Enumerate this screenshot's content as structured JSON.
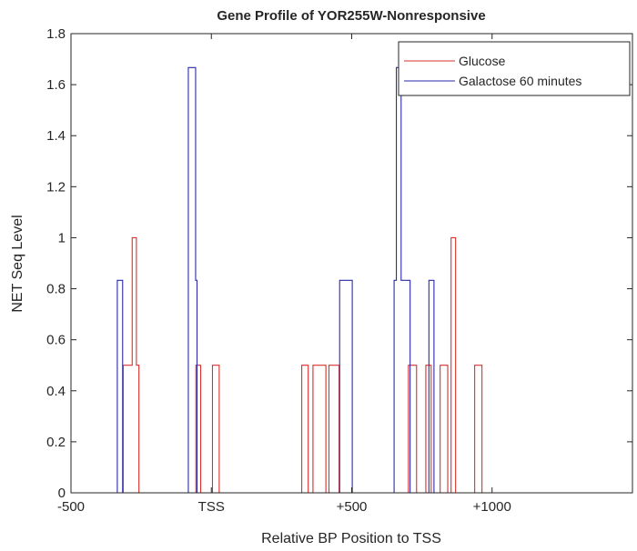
{
  "chart_data": {
    "type": "line",
    "title": "Gene Profile of YOR255W-Nonresponsive",
    "xlabel": "Relative BP Position to TSS",
    "ylabel": "NET Seq Level",
    "xlim": [
      -500,
      1500
    ],
    "ylim": [
      0,
      1.8
    ],
    "x_range_of_data": [
      -500,
      1000
    ],
    "xticks": [
      {
        "value": -500,
        "label": "-500"
      },
      {
        "value": 0,
        "label": "TSS"
      },
      {
        "value": 500,
        "label": "+500"
      },
      {
        "value": 1000,
        "label": "+1000"
      },
      {
        "value": 1500,
        "label": ""
      }
    ],
    "yticks": [
      {
        "value": 0,
        "label": "0"
      },
      {
        "value": 0.2,
        "label": "0.2"
      },
      {
        "value": 0.4,
        "label": "0.4"
      },
      {
        "value": 0.6,
        "label": "0.6"
      },
      {
        "value": 0.8,
        "label": "0.8"
      },
      {
        "value": 1,
        "label": "1"
      },
      {
        "value": 1.2,
        "label": "1.2"
      },
      {
        "value": 1.4,
        "label": "1.4"
      },
      {
        "value": 1.6,
        "label": "1.6"
      },
      {
        "value": 1.8,
        "label": "1.8"
      }
    ],
    "grid": false,
    "legend_position": "top-right",
    "series": [
      {
        "name": "Glucose",
        "color": "#d9312b",
        "step_segments": [
          [
            -314,
            -282,
            0.5
          ],
          [
            -282,
            -267,
            1
          ],
          [
            -267,
            -258,
            0.5
          ],
          [
            -55,
            -38,
            0.5
          ],
          [
            4,
            28,
            0.5
          ],
          [
            322,
            345,
            0.5
          ],
          [
            362,
            383,
            0.5
          ],
          [
            383,
            408,
            0.5
          ],
          [
            419,
            437,
            0.5
          ],
          [
            437,
            455,
            0.5
          ],
          [
            702,
            731,
            0.5
          ],
          [
            764,
            783,
            0.5
          ],
          [
            815,
            842,
            0.5
          ],
          [
            854,
            870,
            1
          ],
          [
            938,
            964,
            0.5
          ]
        ]
      },
      {
        "name": "Galactose 60 minutes",
        "color": "#2a2aa8",
        "step_segments": [
          [
            -335,
            -316,
            0.833
          ],
          [
            -82,
            -56,
            1.667
          ],
          [
            -56,
            -51,
            0.833
          ],
          [
            457,
            502,
            0.833
          ],
          [
            651,
            659,
            0.833
          ],
          [
            659,
            676,
            1.667
          ],
          [
            676,
            708,
            0.833
          ],
          [
            775,
            793,
            0.833
          ]
        ]
      }
    ]
  }
}
